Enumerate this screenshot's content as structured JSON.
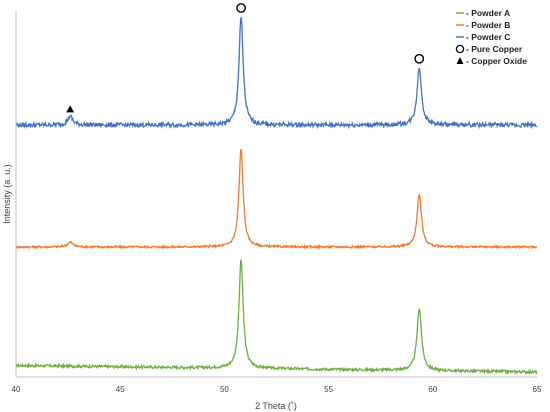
{
  "chart_data": {
    "type": "line",
    "xlabel": "2 Theta (˚)",
    "ylabel": "Intensity (a. u.)",
    "xlim": [
      40,
      65
    ],
    "x_ticks": [
      "40",
      "45",
      "50",
      "55",
      "60",
      "65"
    ],
    "grid": false,
    "legend_position": "top-right",
    "series": [
      {
        "name": "Powder A",
        "color": "#70ad47",
        "baseline": 0.06,
        "noise": 0.012,
        "peaks": [
          {
            "x": 50.8,
            "height": 1.0,
            "width": 0.12
          },
          {
            "x": 59.35,
            "height": 0.57,
            "width": 0.13
          }
        ]
      },
      {
        "name": "Powder B",
        "color": "#ed7d31",
        "baseline": 0.0,
        "noise": 0.01,
        "peaks": [
          {
            "x": 42.6,
            "height": 0.05,
            "width": 0.15
          },
          {
            "x": 50.8,
            "height": 0.97,
            "width": 0.12
          },
          {
            "x": 59.35,
            "height": 0.52,
            "width": 0.13
          }
        ]
      },
      {
        "name": "Powder C",
        "color": "#4472c4",
        "baseline": 0.0,
        "noise": 0.02,
        "peaks": [
          {
            "x": 42.6,
            "height": 0.08,
            "width": 0.15
          },
          {
            "x": 50.8,
            "height": 1.0,
            "width": 0.12
          },
          {
            "x": 59.35,
            "height": 0.53,
            "width": 0.13
          }
        ]
      }
    ],
    "markers": [
      {
        "name": "Pure Copper",
        "symbol": "circle",
        "x": 50.8
      },
      {
        "name": "Pure Copper",
        "symbol": "circle",
        "x": 59.35
      },
      {
        "name": "Copper Oxide",
        "symbol": "triangle",
        "x": 42.6
      }
    ],
    "legend": [
      {
        "label": "- Powder A",
        "kind": "line",
        "color": "#70ad47"
      },
      {
        "label": "- Powder B",
        "kind": "line",
        "color": "#ed7d31"
      },
      {
        "label": "- Powder C",
        "kind": "line",
        "color": "#4472c4"
      },
      {
        "label": "- Pure Copper",
        "kind": "circle"
      },
      {
        "label": "- Copper Oxide",
        "kind": "triangle"
      }
    ]
  }
}
